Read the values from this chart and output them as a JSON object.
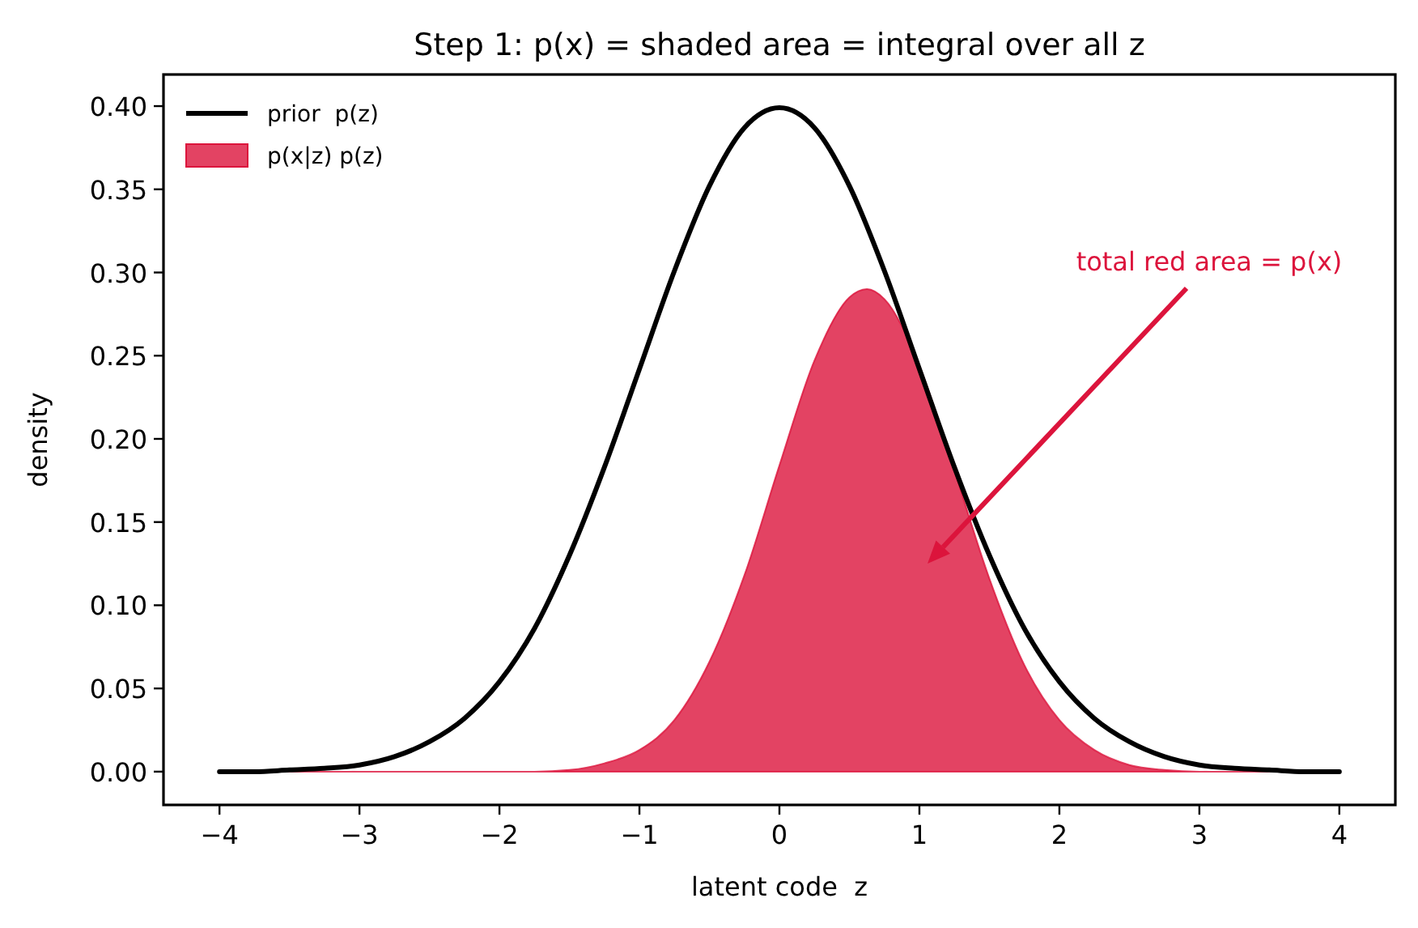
{
  "chart_data": {
    "type": "line",
    "title": "Step 1: p(x) = shaded area = integral over all z",
    "xlabel": "latent code  z",
    "ylabel": "density",
    "xlim": [
      -4.4,
      4.4
    ],
    "ylim": [
      -0.02,
      0.419
    ],
    "xticks": [
      -4,
      -3,
      -2,
      -1,
      0,
      1,
      2,
      3,
      4
    ],
    "yticks": [
      {
        "value": 0,
        "label": "0.00"
      },
      {
        "value": 0.05,
        "label": "0.05"
      },
      {
        "value": 0.1,
        "label": "0.10"
      },
      {
        "value": 0.15,
        "label": "0.15"
      },
      {
        "value": 0.2,
        "label": "0.20"
      },
      {
        "value": 0.25,
        "label": "0.25"
      },
      {
        "value": 0.3,
        "label": "0.30"
      },
      {
        "value": 0.35,
        "label": "0.35"
      },
      {
        "value": 0.4,
        "label": "0.40"
      }
    ],
    "series": [
      {
        "name": "prior  p(z)",
        "color": "#000000",
        "x": [
          -4,
          -3.75,
          -3.5,
          -3.25,
          -3,
          -2.75,
          -2.5,
          -2.25,
          -2,
          -1.75,
          -1.5,
          -1.25,
          -1,
          -0.75,
          -0.5,
          -0.25,
          0,
          0.25,
          0.5,
          0.75,
          1,
          1.25,
          1.5,
          1.75,
          2,
          2.25,
          2.5,
          2.75,
          3,
          3.25,
          3.5,
          3.75,
          4
        ],
        "values": [
          0.0,
          0.0,
          0.001,
          0.002,
          0.004,
          0.009,
          0.018,
          0.032,
          0.054,
          0.086,
          0.13,
          0.183,
          0.242,
          0.301,
          0.352,
          0.387,
          0.399,
          0.387,
          0.352,
          0.301,
          0.242,
          0.183,
          0.13,
          0.086,
          0.054,
          0.032,
          0.018,
          0.009,
          0.004,
          0.002,
          0.001,
          0.0,
          0.0
        ]
      },
      {
        "name": "p(x|z) p(z)",
        "type": "area",
        "color": "#dc143c",
        "x": [
          -4,
          -3,
          -2,
          -1.75,
          -1.5,
          -1.25,
          -1,
          -0.75,
          -0.5,
          -0.25,
          0,
          0.25,
          0.5,
          0.625,
          0.75,
          1,
          1.25,
          1.5,
          1.75,
          2,
          2.25,
          2.5,
          2.75,
          3,
          4
        ],
        "values": [
          0.0,
          0.0,
          0.0,
          0.0,
          0.001,
          0.005,
          0.013,
          0.031,
          0.066,
          0.118,
          0.184,
          0.247,
          0.285,
          0.29,
          0.284,
          0.244,
          0.181,
          0.116,
          0.064,
          0.031,
          0.013,
          0.004,
          0.001,
          0.0,
          0.0
        ]
      }
    ],
    "legend": "top left",
    "annotations": [
      "total red area = p(x)"
    ]
  }
}
